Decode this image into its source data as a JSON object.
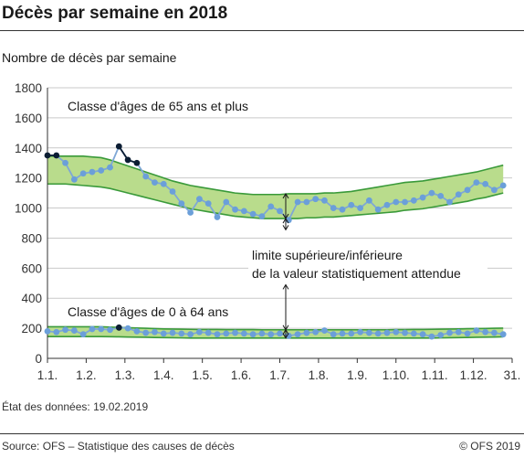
{
  "header": {
    "title": "Décès par semaine en 2018",
    "subtitle": "Nombre de décès par semaine"
  },
  "footer": {
    "status": "État des données: 19.02.2019",
    "source": "Source: OFS – Statistique des causes de décès",
    "copyright": "© OFS 2019"
  },
  "colors": {
    "band_fill": "#b9dc8c",
    "band_line": "#3a9a3a",
    "series_line": "#7fa7d6",
    "marker": "#6b9fd9",
    "marker_outlier": "#0b1d33",
    "axis": "#333333",
    "grid": "#c9c9c9"
  },
  "chart_data": {
    "type": "line",
    "ylim": [
      0,
      1800
    ],
    "yticks": [
      "0",
      "200",
      "400",
      "600",
      "800",
      "1000",
      "1200",
      "1400",
      "1600",
      "1800"
    ],
    "xlim": [
      1,
      53
    ],
    "xtick_labels": [
      "1.1.",
      "1.2.",
      "1.3.",
      "1.4.",
      "1.5.",
      "1.6.",
      "1.7.",
      "1.8.",
      "1.9.",
      "1.10.",
      "1.11.",
      "1.12.",
      "31."
    ],
    "grid": true,
    "annotations": {
      "series_65_label": "Classe d'âges de 65 ans et plus",
      "series_0_64_label": "Classe d'âges de 0 à 64 ans",
      "limit_line1": "limite supérieure/inférieure",
      "limit_line2": "de la valeur statistiquement attendue"
    },
    "series": [
      {
        "name": "Classe d'âges de 65 ans et plus",
        "values": [
          1350,
          1350,
          1300,
          1190,
          1230,
          1240,
          1250,
          1270,
          1410,
          1320,
          1300,
          1210,
          1170,
          1160,
          1110,
          1030,
          970,
          1060,
          1030,
          940,
          1040,
          990,
          980,
          960,
          945,
          1010,
          980,
          920,
          1040,
          1040,
          1060,
          1050,
          1000,
          990,
          1020,
          1000,
          1050,
          990,
          1020,
          1040,
          1040,
          1050,
          1070,
          1100,
          1080,
          1040,
          1090,
          1120,
          1170,
          1160,
          1120,
          1150
        ],
        "outlier_weeks": [
          1,
          2,
          9,
          10,
          11
        ],
        "expected_upper": [
          1345,
          1345,
          1345,
          1345,
          1345,
          1340,
          1335,
          1320,
          1300,
          1280,
          1260,
          1240,
          1220,
          1200,
          1180,
          1165,
          1150,
          1140,
          1130,
          1120,
          1110,
          1100,
          1095,
          1090,
          1090,
          1090,
          1090,
          1095,
          1095,
          1095,
          1095,
          1100,
          1100,
          1105,
          1110,
          1120,
          1130,
          1140,
          1150,
          1160,
          1170,
          1175,
          1180,
          1190,
          1200,
          1210,
          1220,
          1230,
          1240,
          1255,
          1270,
          1285
        ],
        "expected_lower": [
          1160,
          1160,
          1160,
          1155,
          1150,
          1145,
          1140,
          1130,
          1115,
          1100,
          1085,
          1070,
          1055,
          1040,
          1025,
          1010,
          995,
          985,
          975,
          965,
          955,
          945,
          940,
          935,
          930,
          930,
          930,
          930,
          930,
          935,
          935,
          940,
          940,
          945,
          950,
          955,
          960,
          965,
          970,
          975,
          985,
          990,
          995,
          1005,
          1015,
          1025,
          1035,
          1045,
          1060,
          1070,
          1085,
          1100
        ]
      },
      {
        "name": "Classe d'âges de 0 à 64 ans",
        "values": [
          180,
          175,
          190,
          185,
          160,
          195,
          195,
          190,
          205,
          200,
          180,
          170,
          175,
          165,
          170,
          165,
          160,
          175,
          170,
          160,
          165,
          170,
          165,
          160,
          165,
          160,
          165,
          150,
          160,
          170,
          175,
          185,
          160,
          165,
          165,
          175,
          170,
          165,
          170,
          175,
          170,
          165,
          160,
          145,
          155,
          170,
          175,
          165,
          185,
          175,
          170,
          160
        ],
        "outlier_weeks": [
          9
        ],
        "expected_upper": [
          210,
          210,
          210,
          210,
          210,
          210,
          210,
          208,
          206,
          204,
          202,
          200,
          198,
          196,
          195,
          194,
          193,
          192,
          192,
          192,
          191,
          191,
          191,
          191,
          190,
          190,
          190,
          190,
          190,
          190,
          190,
          190,
          190,
          190,
          190,
          190,
          190,
          190,
          190,
          191,
          191,
          192,
          192,
          193,
          194,
          195,
          196,
          197,
          198,
          199,
          200,
          201
        ],
        "expected_lower": [
          145,
          145,
          145,
          145,
          145,
          145,
          145,
          144,
          143,
          142,
          141,
          140,
          139,
          138,
          137,
          136,
          135,
          135,
          135,
          135,
          135,
          135,
          135,
          135,
          135,
          135,
          135,
          135,
          135,
          135,
          135,
          135,
          135,
          135,
          135,
          135,
          135,
          135,
          135,
          135,
          135,
          135,
          135,
          135,
          136,
          137,
          138,
          139,
          140,
          141,
          142,
          143
        ]
      }
    ]
  }
}
